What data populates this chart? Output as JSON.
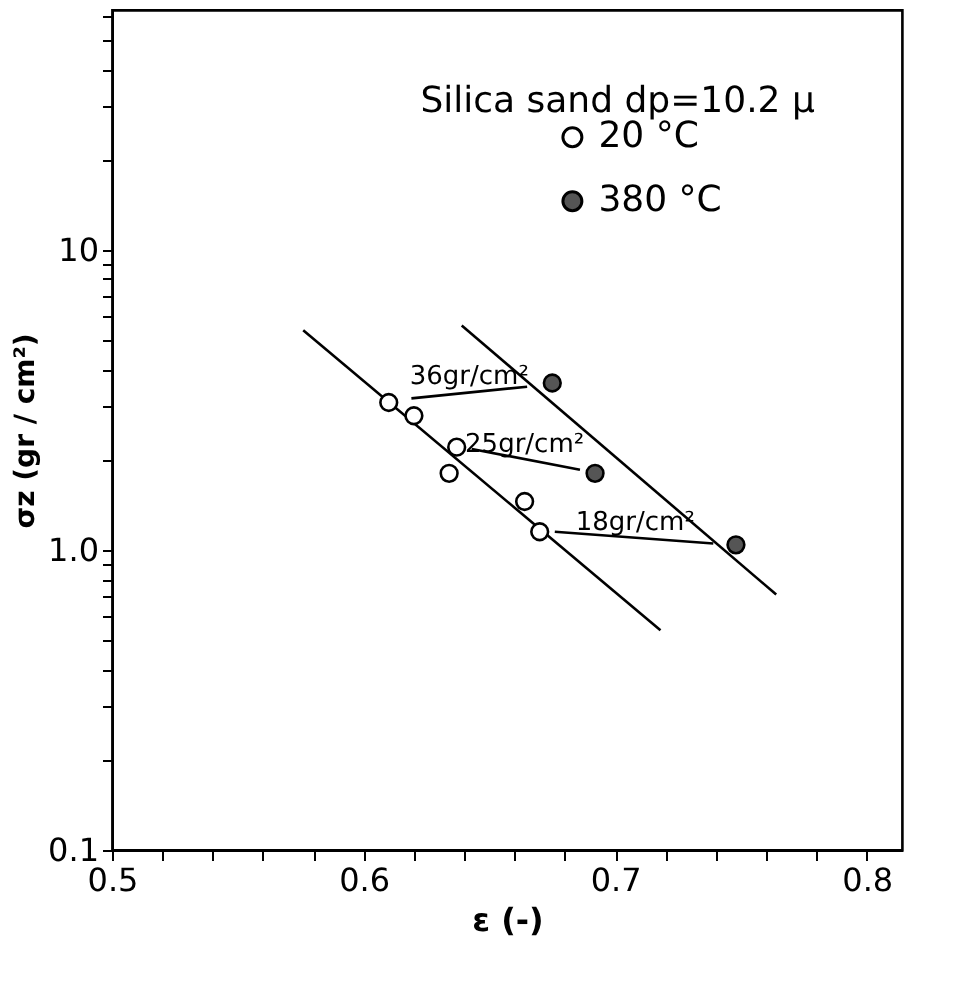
{
  "chart_data": {
    "type": "scatter",
    "xlabel": "ε (-)",
    "ylabel": "σz (gr / cm²)",
    "xlim": [
      0.5,
      0.814
    ],
    "ylim": [
      0.1,
      63
    ],
    "log": "y",
    "grid": false,
    "legend": "top right",
    "xticks": [
      0.5,
      {
        "value": 0.52,
        "label": null
      },
      {
        "value": 0.54,
        "label": null
      },
      {
        "value": 0.56,
        "label": null
      },
      {
        "value": 0.58,
        "label": null
      },
      0.6,
      {
        "value": 0.62,
        "label": null
      },
      {
        "value": 0.64,
        "label": null
      },
      {
        "value": 0.66,
        "label": null
      },
      {
        "value": 0.68,
        "label": null
      },
      0.7,
      {
        "value": 0.72,
        "label": null
      },
      {
        "value": 0.74,
        "label": null
      },
      {
        "value": 0.76,
        "label": null
      },
      {
        "value": 0.78,
        "label": null
      },
      0.8
    ],
    "yticks": [
      {
        "value": 0.1,
        "label": "0.1"
      },
      {
        "value": 0.2,
        "label": null
      },
      {
        "value": 0.3,
        "label": null
      },
      {
        "value": 0.4,
        "label": null
      },
      {
        "value": 0.5,
        "label": null
      },
      {
        "value": 0.6,
        "label": null
      },
      {
        "value": 0.7,
        "label": null
      },
      {
        "value": 0.8,
        "label": null
      },
      {
        "value": 0.9,
        "label": null
      },
      {
        "value": 1,
        "label": "1.0"
      },
      {
        "value": 2,
        "label": null
      },
      {
        "value": 3,
        "label": null
      },
      {
        "value": 4,
        "label": null
      },
      {
        "value": 5,
        "label": null
      },
      {
        "value": 6,
        "label": null
      },
      {
        "value": 7,
        "label": null
      },
      {
        "value": 8,
        "label": null
      },
      {
        "value": 9,
        "label": null
      },
      10,
      {
        "value": 20,
        "label": null
      },
      {
        "value": 30,
        "label": null
      },
      {
        "value": 40,
        "label": null
      },
      {
        "value": 50,
        "label": null
      },
      {
        "value": 60,
        "label": null
      }
    ],
    "series": [
      {
        "name": "20 °C",
        "color": "#ffffff",
        "marker": "circle",
        "x": [
          0.61,
          0.62,
          0.637,
          0.634,
          0.664,
          0.67
        ],
        "values": [
          3.1,
          2.8,
          2.2,
          1.8,
          1.45,
          1.15
        ]
      },
      {
        "name": "380 °C",
        "color": "#555555",
        "marker": "circle",
        "x": [
          0.675,
          0.692,
          0.748
        ],
        "values": [
          3.6,
          1.8,
          1.04
        ]
      },
      {
        "type": "line",
        "color": "#000000",
        "x": [
          0.576,
          0.718
        ],
        "values": [
          5.4,
          0.54
        ]
      },
      {
        "type": "line",
        "color": "#000000",
        "x": [
          0.639,
          0.764
        ],
        "values": [
          5.6,
          0.71
        ]
      },
      {
        "type": "line",
        "color": "#000000",
        "x": [
          0.619,
          0.665
        ],
        "values": [
          3.2,
          3.5
        ]
      },
      {
        "type": "line",
        "color": "#000000",
        "x": [
          0.643,
          0.686
        ],
        "values": [
          2.17,
          1.85
        ]
      },
      {
        "type": "line",
        "color": "#000000",
        "x": [
          0.676,
          0.739
        ],
        "values": [
          1.15,
          1.05
        ]
      }
    ],
    "annotations": [
      "Silica sand  dp=10.2 μ",
      {
        "text": "36gr/cm²",
        "x": 0.642,
        "y": 3.35
      },
      {
        "text": "25gr/cm²",
        "x": 0.664,
        "y": 2.0
      },
      {
        "text": "18gr/cm²",
        "x": 0.708,
        "y": 1.1
      }
    ]
  }
}
